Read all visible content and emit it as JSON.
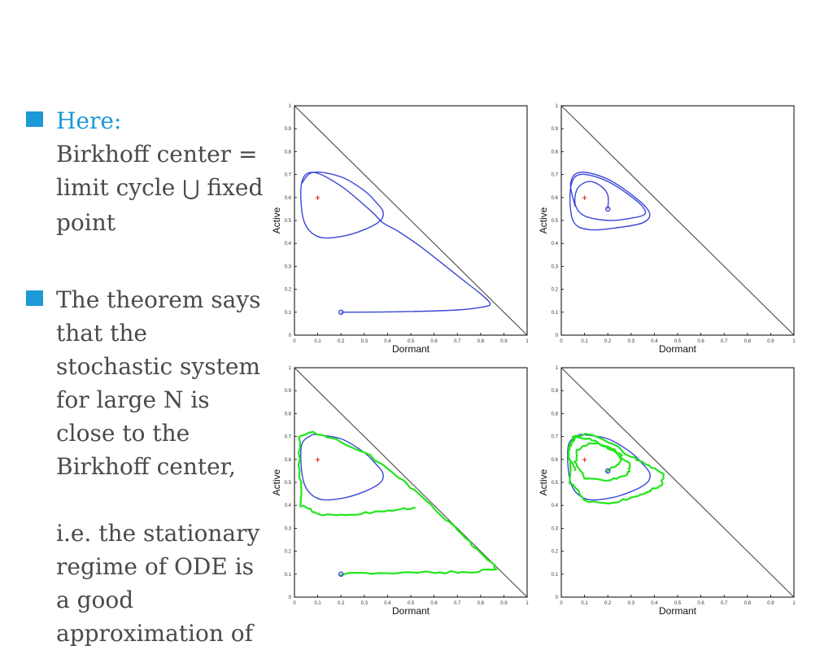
{
  "text": {
    "b1_head": "Here:",
    "b1_line1": "Birkhoff center =",
    "b1_line2a": "limit cycle ",
    "b1_union": "⋃",
    "b1_line2b": " fixed",
    "b1_line3": "point",
    "b2_body": "The theorem says\nthat the\nstochastic system\nfor large N is\nclose to the\nBirkhoff center,\n\ni.e. the stationary\nregime of ODE is\na good\napproximation of"
  },
  "colors": {
    "bullet": "#1b9ad6",
    "ode_trajectory": "#3a46d6",
    "stochastic_trajectory": "#22e61c",
    "fixed_point": "#e02020",
    "diagonal": "#555555"
  },
  "chart_data": [
    {
      "type": "line",
      "xlabel": "Dormant",
      "ylabel": "Active",
      "xlim": [
        0,
        1
      ],
      "ylim": [
        0,
        1
      ],
      "xticks": [
        "0",
        "0.1",
        "0.2",
        "0.3",
        "0.4",
        "0.5",
        "0.6",
        "0.7",
        "0.8",
        "0.9",
        "1"
      ],
      "yticks": [
        "0",
        "0.1",
        "0.2",
        "0.3",
        "0.4",
        "0.5",
        "0.6",
        "0.7",
        "0.8",
        "0.9",
        "1"
      ],
      "fixed_point": [
        0.1,
        0.6
      ],
      "start_point": [
        0.2,
        0.1
      ],
      "series": [
        {
          "style": "ode",
          "x": [
            0.2,
            0.45,
            0.7,
            0.82,
            0.84,
            0.8,
            0.7,
            0.55,
            0.45,
            0.38,
            0.33,
            0.2,
            0.08,
            0.03,
            0.04,
            0.1,
            0.2,
            0.3,
            0.37,
            0.38,
            0.35,
            0.3,
            0.2,
            0.08,
            0.03
          ],
          "y": [
            0.1,
            0.102,
            0.11,
            0.125,
            0.14,
            0.18,
            0.26,
            0.38,
            0.45,
            0.49,
            0.54,
            0.65,
            0.71,
            0.66,
            0.5,
            0.43,
            0.43,
            0.46,
            0.5,
            0.54,
            0.58,
            0.63,
            0.69,
            0.71,
            0.66
          ]
        }
      ]
    },
    {
      "type": "line",
      "xlabel": "Dormant",
      "ylabel": "Active",
      "xlim": [
        0,
        1
      ],
      "ylim": [
        0,
        1
      ],
      "xticks": [
        "0",
        "0.1",
        "0.2",
        "0.3",
        "0.4",
        "0.5",
        "0.6",
        "0.7",
        "0.8",
        "0.9",
        "1"
      ],
      "yticks": [
        "0",
        "0.1",
        "0.2",
        "0.3",
        "0.4",
        "0.5",
        "0.6",
        "0.7",
        "0.8",
        "0.9",
        "1"
      ],
      "fixed_point": [
        0.1,
        0.6
      ],
      "start_point": [
        0.2,
        0.55
      ],
      "series": [
        {
          "style": "ode",
          "x": [
            0.2,
            0.2,
            0.17,
            0.12,
            0.07,
            0.06,
            0.1,
            0.2,
            0.3,
            0.36,
            0.33,
            0.2,
            0.08,
            0.04,
            0.05,
            0.12,
            0.25,
            0.35,
            0.38,
            0.33,
            0.2,
            0.08,
            0.04,
            0.06
          ],
          "y": [
            0.55,
            0.61,
            0.65,
            0.67,
            0.64,
            0.57,
            0.52,
            0.5,
            0.51,
            0.53,
            0.58,
            0.67,
            0.7,
            0.64,
            0.5,
            0.46,
            0.47,
            0.49,
            0.53,
            0.59,
            0.68,
            0.71,
            0.66,
            0.56
          ]
        }
      ]
    },
    {
      "type": "line",
      "xlabel": "Dormant",
      "ylabel": "Active",
      "xlim": [
        0,
        1
      ],
      "ylim": [
        0,
        1
      ],
      "xticks": [
        "0",
        "0.1",
        "0.2",
        "0.3",
        "0.4",
        "0.5",
        "0.6",
        "0.7",
        "0.8",
        "0.9",
        "1"
      ],
      "yticks": [
        "0",
        "0.1",
        "0.2",
        "0.3",
        "0.4",
        "0.5",
        "0.6",
        "0.7",
        "0.8",
        "0.9",
        "1"
      ],
      "fixed_point": [
        0.1,
        0.6
      ],
      "start_point": [
        0.2,
        0.1
      ],
      "series": [
        {
          "style": "ode",
          "x": [
            0.08,
            0.03,
            0.04,
            0.1,
            0.2,
            0.3,
            0.37,
            0.38,
            0.35,
            0.3,
            0.2,
            0.08
          ],
          "y": [
            0.71,
            0.66,
            0.5,
            0.43,
            0.43,
            0.46,
            0.5,
            0.54,
            0.58,
            0.63,
            0.69,
            0.71
          ]
        },
        {
          "style": "stochastic",
          "x": [
            0.2,
            0.4,
            0.6,
            0.75,
            0.87,
            0.85,
            0.75,
            0.65,
            0.55,
            0.45,
            0.35,
            0.2,
            0.08,
            0.02,
            0.02,
            0.03,
            0.1,
            0.22,
            0.35,
            0.45,
            0.52
          ],
          "y": [
            0.1,
            0.105,
            0.107,
            0.11,
            0.12,
            0.15,
            0.24,
            0.34,
            0.44,
            0.52,
            0.6,
            0.68,
            0.72,
            0.7,
            0.55,
            0.4,
            0.36,
            0.36,
            0.37,
            0.38,
            0.39
          ]
        }
      ]
    },
    {
      "type": "line",
      "xlabel": "Dormant",
      "ylabel": "Active",
      "xlim": [
        0,
        1
      ],
      "ylim": [
        0,
        1
      ],
      "xticks": [
        "0",
        "0.1",
        "0.2",
        "0.3",
        "0.4",
        "0.5",
        "0.6",
        "0.7",
        "0.8",
        "0.9",
        "1"
      ],
      "yticks": [
        "0",
        "0.1",
        "0.2",
        "0.3",
        "0.4",
        "0.5",
        "0.6",
        "0.7",
        "0.8",
        "0.9",
        "1"
      ],
      "fixed_point": [
        0.1,
        0.6
      ],
      "start_point": [
        0.2,
        0.55
      ],
      "series": [
        {
          "style": "ode",
          "x": [
            0.08,
            0.03,
            0.04,
            0.1,
            0.2,
            0.3,
            0.37,
            0.38,
            0.35,
            0.3,
            0.2,
            0.08
          ],
          "y": [
            0.71,
            0.66,
            0.5,
            0.43,
            0.43,
            0.46,
            0.5,
            0.54,
            0.58,
            0.63,
            0.69,
            0.71
          ]
        },
        {
          "style": "stochastic",
          "x": [
            0.2,
            0.25,
            0.26,
            0.2,
            0.12,
            0.07,
            0.06,
            0.1,
            0.2,
            0.28,
            0.3,
            0.25,
            0.15,
            0.06,
            0.03,
            0.04,
            0.1,
            0.2,
            0.3,
            0.38,
            0.43,
            0.44,
            0.38,
            0.3,
            0.22,
            0.12,
            0.05,
            0.03,
            0.06
          ],
          "y": [
            0.55,
            0.58,
            0.62,
            0.66,
            0.67,
            0.64,
            0.58,
            0.52,
            0.51,
            0.53,
            0.57,
            0.62,
            0.68,
            0.7,
            0.64,
            0.5,
            0.42,
            0.41,
            0.43,
            0.46,
            0.49,
            0.53,
            0.57,
            0.61,
            0.67,
            0.71,
            0.7,
            0.62,
            0.55
          ]
        }
      ]
    }
  ]
}
